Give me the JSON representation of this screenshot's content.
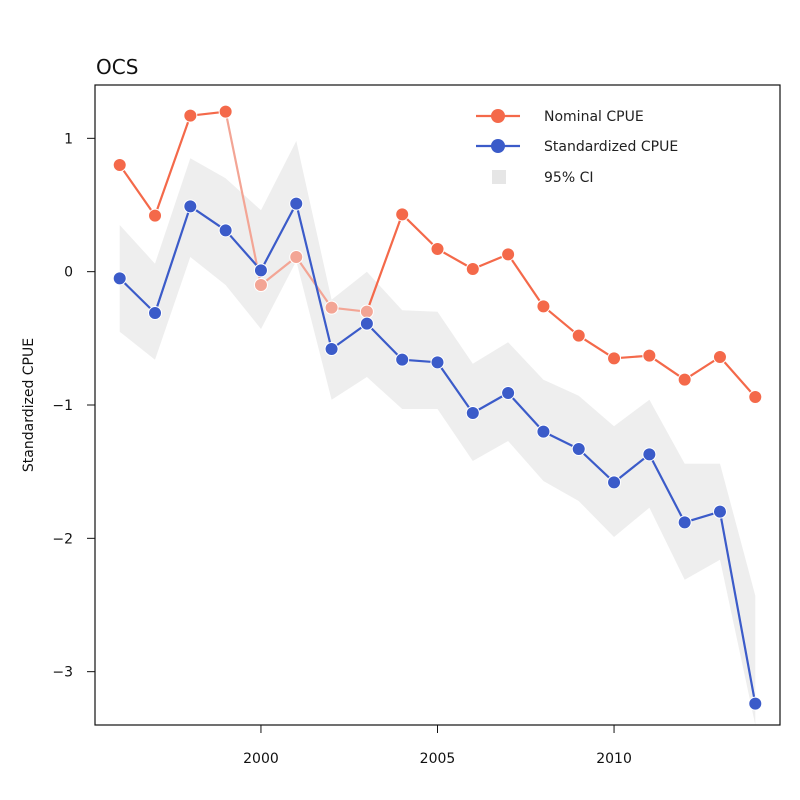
{
  "chart_data": {
    "type": "line",
    "title": "OCS",
    "xlabel": "",
    "ylabel": "Standardized CPUE",
    "xlim": [
      1995.3,
      2014.7
    ],
    "ylim": [
      -3.4,
      1.4
    ],
    "x_ticks": [
      2000,
      2005,
      2010
    ],
    "y_ticks": [
      -3,
      -2,
      -1,
      0,
      1
    ],
    "y_tick_labels": [
      "−3",
      "−2",
      "−1",
      "0",
      "1"
    ],
    "x": [
      1996,
      1997,
      1998,
      1999,
      2000,
      2001,
      2002,
      2003,
      2004,
      2005,
      2006,
      2007,
      2008,
      2009,
      2010,
      2011,
      2012,
      2013,
      2014
    ],
    "series": [
      {
        "name": "Nominal CPUE",
        "color": "#F4694A",
        "faded_color": "#F3A595",
        "faded_points": [
          2000,
          2001,
          2002,
          2003
        ],
        "values": [
          0.8,
          0.42,
          1.17,
          1.2,
          -0.1,
          0.11,
          -0.27,
          -0.3,
          0.43,
          0.17,
          0.02,
          0.13,
          -0.26,
          -0.48,
          -0.65,
          -0.63,
          -0.81,
          -0.64,
          -0.94
        ]
      },
      {
        "name": "Standardized CPUE",
        "color": "#3B5BC9",
        "values": [
          -0.05,
          -0.31,
          0.49,
          0.31,
          0.01,
          0.51,
          -0.58,
          -0.39,
          -0.66,
          -0.68,
          -1.06,
          -0.91,
          -1.2,
          -1.33,
          -1.58,
          -1.37,
          -1.88,
          -1.8,
          -3.24
        ],
        "ci_lower": [
          -0.45,
          -0.66,
          0.11,
          -0.1,
          -0.43,
          0.08,
          -0.96,
          -0.79,
          -1.03,
          -1.03,
          -1.42,
          -1.27,
          -1.57,
          -1.72,
          -1.99,
          -1.77,
          -2.31,
          -2.16,
          -3.4
        ],
        "ci_upper": [
          0.35,
          0.06,
          0.85,
          0.7,
          0.46,
          0.98,
          -0.21,
          0.0,
          -0.29,
          -0.3,
          -0.69,
          -0.53,
          -0.81,
          -0.93,
          -1.16,
          -0.96,
          -1.44,
          -1.44,
          -2.43
        ]
      }
    ],
    "ci_label": "95% CI",
    "ci_color": "#EEEEEE",
    "grid": false,
    "legend_position": "top-right"
  }
}
